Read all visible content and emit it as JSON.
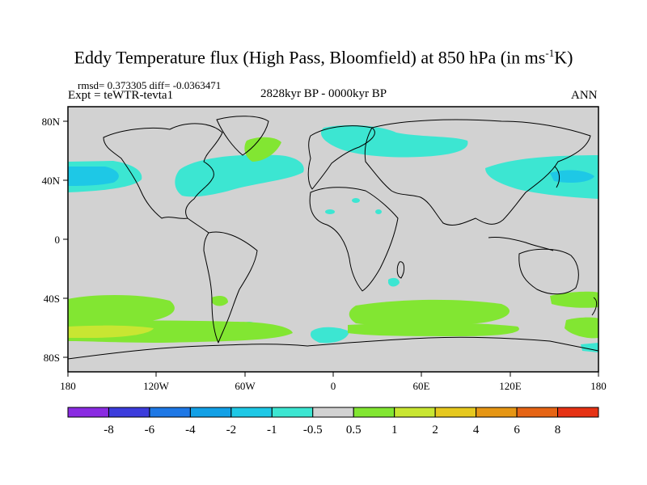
{
  "title_pre": "Eddy Temperature flux (High Pass, Bloomfield) at 850 hPa (in ms",
  "title_sup": "-1",
  "title_post": "K)",
  "stats": "rmsd= 0.373305 diff= -0.0363471",
  "expt": "Expt = teWTR-tevta1",
  "period": "2828kyr BP - 0000kyr BP",
  "season": "ANN",
  "axes": {
    "x_ticks": [
      "180",
      "120W",
      "60W",
      "0",
      "60E",
      "120E",
      "180"
    ],
    "y_ticks": [
      "80N",
      "40N",
      "0",
      "40S",
      "80S"
    ]
  },
  "colorbar": {
    "labels": [
      "-8",
      "-6",
      "-4",
      "-2",
      "-1",
      "-0.5",
      "0.5",
      "1",
      "2",
      "4",
      "6",
      "8"
    ],
    "colors": [
      "#8a2be2",
      "#3c3cdc",
      "#1e78e6",
      "#12a0e6",
      "#1ec8e6",
      "#3ce6d2",
      "#d2d2d2",
      "#82e632",
      "#c8e632",
      "#e6c81e",
      "#e69614",
      "#e66414",
      "#e63214"
    ]
  },
  "colors": {
    "land_ocean": "#d2d2d2",
    "negative_fill": "#3ce6d2",
    "positive_fill": "#82e632",
    "positive_strong": "#c8e632"
  }
}
